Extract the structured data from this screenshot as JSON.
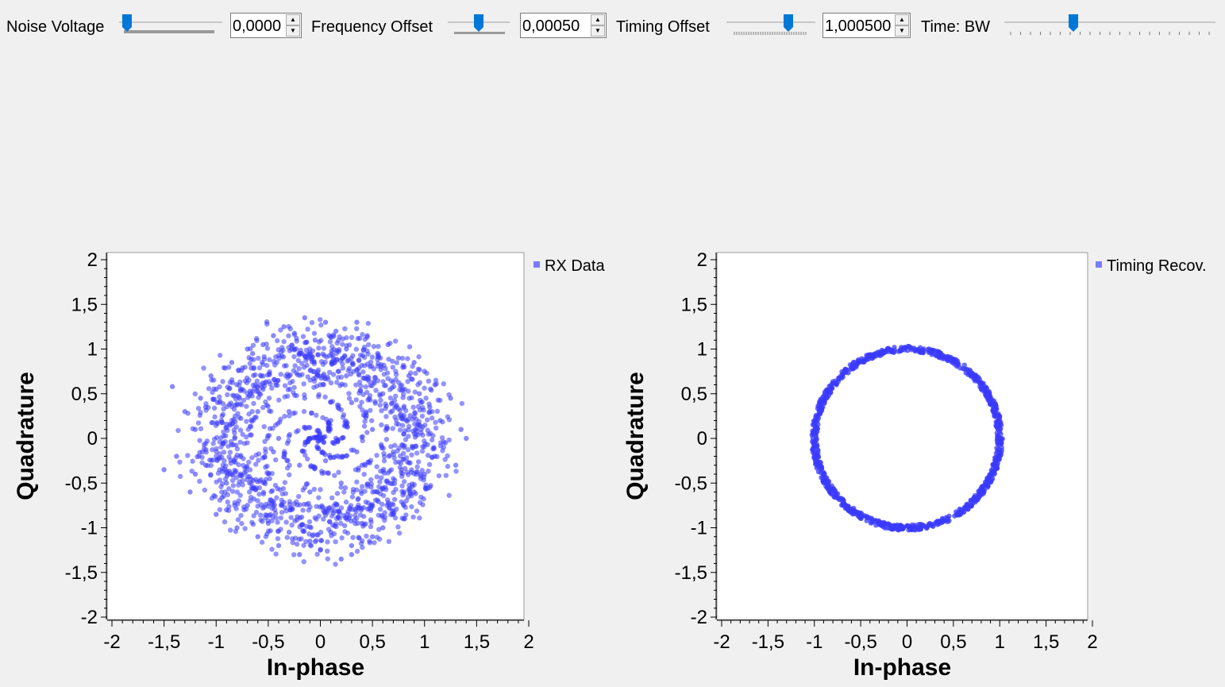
{
  "controls": [
    {
      "label": "Noise Voltage",
      "value": "0,0000",
      "slider_fraction": 0.03
    },
    {
      "label": "Frequency Offset",
      "value": "0,00050",
      "slider_fraction": 0.5
    },
    {
      "label": "Timing Offset",
      "value": "1,000500",
      "slider_fraction": 0.72
    },
    {
      "label": "Time: BW",
      "slider_fraction": 0.32
    }
  ],
  "chart_data": [
    {
      "type": "scatter",
      "legend": "RX Data",
      "xlabel": "In-phase",
      "ylabel": "Quadrature",
      "xlim": [
        -2,
        2
      ],
      "ylim": [
        -2,
        2
      ],
      "xticks": [
        "-2",
        "-1,5",
        "-1",
        "-0,5",
        "0",
        "0,5",
        "1",
        "1,5",
        "2"
      ],
      "yticks": [
        "-2",
        "-1,5",
        "-1",
        "-0,5",
        "0",
        "0,5",
        "1",
        "1,5",
        "2"
      ],
      "color": "#3b3bff",
      "points_description_shape": "diffuse ring, radius ~0.9-1.2 with scattered interior points",
      "points": [
        [
          -1.5,
          -0.35
        ],
        [
          -1.42,
          0.58
        ],
        [
          -1.3,
          0.3
        ],
        [
          -1.38,
          -0.2
        ],
        [
          -1.25,
          -0.6
        ],
        [
          -1.2,
          0.1
        ],
        [
          -1.15,
          0.45
        ],
        [
          -1.1,
          -0.3
        ],
        [
          -1.05,
          0.7
        ],
        [
          -1.0,
          -0.85
        ],
        [
          -0.95,
          0.2
        ],
        [
          -0.9,
          -0.5
        ],
        [
          -0.85,
          0.85
        ],
        [
          -0.8,
          -1.0
        ],
        [
          -0.75,
          0.55
        ],
        [
          -0.7,
          -0.75
        ],
        [
          -0.65,
          0.95
        ],
        [
          -0.6,
          -1.1
        ],
        [
          -0.55,
          1.05
        ],
        [
          -0.5,
          -0.95
        ],
        [
          -0.45,
          1.15
        ],
        [
          -0.4,
          -1.2
        ],
        [
          -0.35,
          1.25
        ],
        [
          -0.3,
          -1.05
        ],
        [
          -0.25,
          1.0
        ],
        [
          -0.2,
          -1.3
        ],
        [
          -0.15,
          1.35
        ],
        [
          -0.1,
          -1.15
        ],
        [
          -0.05,
          1.1
        ],
        [
          0.0,
          -1.25
        ],
        [
          0.05,
          1.3
        ],
        [
          0.1,
          -1.05
        ],
        [
          0.15,
          1.2
        ],
        [
          0.2,
          -1.35
        ],
        [
          0.25,
          1.0
        ],
        [
          0.3,
          -1.2
        ],
        [
          0.35,
          1.3
        ],
        [
          0.4,
          -0.95
        ],
        [
          0.45,
          1.15
        ],
        [
          0.5,
          -1.1
        ],
        [
          0.55,
          0.95
        ],
        [
          0.6,
          -1.0
        ],
        [
          0.65,
          1.05
        ],
        [
          0.7,
          -0.85
        ],
        [
          0.75,
          0.9
        ],
        [
          0.8,
          -0.75
        ],
        [
          0.85,
          0.7
        ],
        [
          0.9,
          -0.6
        ],
        [
          0.95,
          0.5
        ],
        [
          1.0,
          -0.4
        ],
        [
          1.05,
          0.35
        ],
        [
          1.1,
          -0.2
        ],
        [
          1.15,
          0.2
        ],
        [
          1.2,
          -0.05
        ],
        [
          1.25,
          0.45
        ],
        [
          1.3,
          -0.3
        ],
        [
          1.35,
          0.1
        ],
        [
          1.4,
          0.0
        ],
        [
          1.1,
          0.6
        ],
        [
          1.0,
          0.75
        ],
        [
          0.9,
          0.85
        ],
        [
          0.8,
          -0.9
        ],
        [
          -0.9,
          -0.8
        ],
        [
          -1.0,
          0.55
        ],
        [
          -1.1,
          0.35
        ],
        [
          -1.2,
          -0.4
        ],
        [
          -0.7,
          1.0
        ],
        [
          0.3,
          -1.3
        ],
        [
          -0.3,
          0.3
        ],
        [
          0.1,
          0.2
        ],
        [
          -0.2,
          -0.3
        ],
        [
          0.3,
          0.4
        ],
        [
          -0.4,
          0.0
        ],
        [
          0.2,
          -0.5
        ],
        [
          0.0,
          0.6
        ],
        [
          -0.6,
          0.3
        ],
        [
          0.5,
          0.1
        ],
        [
          -0.1,
          -0.6
        ],
        [
          0.4,
          -0.3
        ],
        [
          -0.5,
          -0.4
        ],
        [
          0.6,
          0.5
        ],
        [
          -0.3,
          0.7
        ],
        [
          0.15,
          0.0
        ],
        [
          -0.15,
          0.45
        ],
        [
          0.35,
          -0.15
        ],
        [
          -0.45,
          -0.15
        ],
        [
          0.05,
          -0.25
        ],
        [
          0.25,
          0.7
        ],
        [
          -0.55,
          0.55
        ],
        [
          0.55,
          -0.6
        ]
      ]
    },
    {
      "type": "scatter",
      "legend": "Timing Recov.",
      "xlabel": "In-phase",
      "ylabel": "Quadrature",
      "xlim": [
        -2,
        2
      ],
      "ylim": [
        -2,
        2
      ],
      "xticks": [
        "-2",
        "-1,5",
        "-1",
        "-0,5",
        "0",
        "0,5",
        "1",
        "1,5",
        "2"
      ],
      "yticks": [
        "-2",
        "-1,5",
        "-1",
        "-0,5",
        "0",
        "0,5",
        "1",
        "1,5",
        "2"
      ],
      "color": "#3b3bff",
      "ring_radius": 1.0
    }
  ]
}
